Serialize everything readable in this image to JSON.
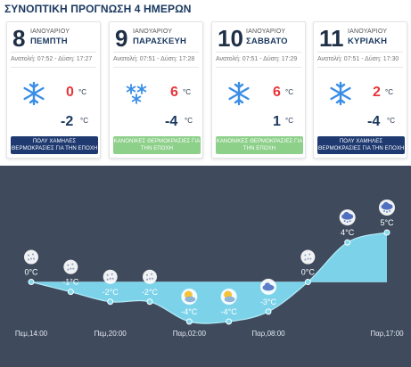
{
  "title": "ΣΥΝΟΠΤΙΚΗ ΠΡΟΓΝΩΣΗ 4 ΗΜΕΡΩΝ",
  "days": [
    {
      "day": "8",
      "month": "ΙΑΝΟΥΑΡΙΟΥ",
      "weekday": "ΠΕΜΠΤΗ",
      "sun": "Ανατολή: 07:52 - Δύση: 17:27",
      "icon": "snowflake-icon",
      "tmax": "0",
      "tmin": "-2",
      "unit": "°C",
      "badge": "ΠΟΛΥ ΧΑΜΗΛΕΣ ΘΕΡΜΟΚΡΑΣΙΕΣ ΓΙΑ ΤΗΝ ΕΠΟΧΗ",
      "badge_color": "blue"
    },
    {
      "day": "9",
      "month": "ΙΑΝΟΥΑΡΙΟΥ",
      "weekday": "ΠΑΡΑΣΚΕΥΗ",
      "sun": "Ανατολή: 07:51 - Δύση: 17:28",
      "icon": "light-snow-icon",
      "tmax": "6",
      "tmin": "-4",
      "unit": "°C",
      "badge": "ΚΑΝΟΝΙΚΕΣ ΘΕΡΜΟΚΡΑΣΙΕΣ ΓΙΑ ΤΗΝ ΕΠΟΧΗ",
      "badge_color": "green"
    },
    {
      "day": "10",
      "month": "ΙΑΝΟΥΑΡΙΟΥ",
      "weekday": "ΣΑΒΒΑΤΟ",
      "sun": "Ανατολή: 07:51 - Δύση: 17:29",
      "icon": "snowflake-icon",
      "tmax": "6",
      "tmin": "1",
      "unit": "°C",
      "badge": "ΚΑΝΟΝΙΚΕΣ ΘΕΡΜΟΚΡΑΣΙΕΣ ΓΙΑ ΤΗΝ ΕΠΟΧΗ",
      "badge_color": "green"
    },
    {
      "day": "11",
      "month": "ΙΑΝΟΥΑΡΙΟΥ",
      "weekday": "ΚΥΡΙΑΚΗ",
      "sun": "Ανατολή: 07:51 - Δύση: 17:30",
      "icon": "snowflake-icon",
      "tmax": "2",
      "tmin": "-4",
      "unit": "°C",
      "badge": "ΠΟΛΥ ΧΑΜΗΛΕΣ ΘΕΡΜΟΚΡΑΣΙΕΣ ΓΙΑ ΤΗΝ ΕΠΟΧΗ",
      "badge_color": "blue"
    }
  ],
  "colors": {
    "max": "#e8353b",
    "min": "#1b3960",
    "badge_blue": "#1f3a70",
    "badge_green": "#8dd08a",
    "panel": "#3f4b5d",
    "area": "#7fdaf0"
  },
  "chart_data": {
    "type": "area",
    "x": [
      "Πεμ,14:00",
      "Πεμ,17:00",
      "Πεμ,20:00",
      "Πεμ,23:00",
      "Παρ,02:00",
      "Παρ,05:00",
      "Παρ,08:00",
      "Παρ,11:00",
      "Παρ,14:00",
      "Παρ,17:00"
    ],
    "values": [
      0,
      -1,
      -2,
      -2,
      -4,
      -4,
      -3,
      0,
      4,
      5
    ],
    "labels": [
      "0°C",
      "-1°C",
      "-2°C",
      "-2°C",
      "-4°C",
      "-4°C",
      "-3°C",
      "0°C",
      "4°C",
      "5°C"
    ],
    "icons": [
      "snow-icon",
      "snow-icon",
      "snow-icon",
      "snow-icon",
      "night-cloud-icon",
      "night-cloud-icon",
      "cloud-icon",
      "snow-icon",
      "cloud-snow-icon",
      "cloud-snow-icon"
    ],
    "xtick_labels": [
      "Πεμ,14:00",
      "Πεμ,20:00",
      "Παρ,02:00",
      "Παρ,08:00",
      "Παρ,17:00"
    ],
    "ylim": [
      -4,
      5
    ]
  }
}
